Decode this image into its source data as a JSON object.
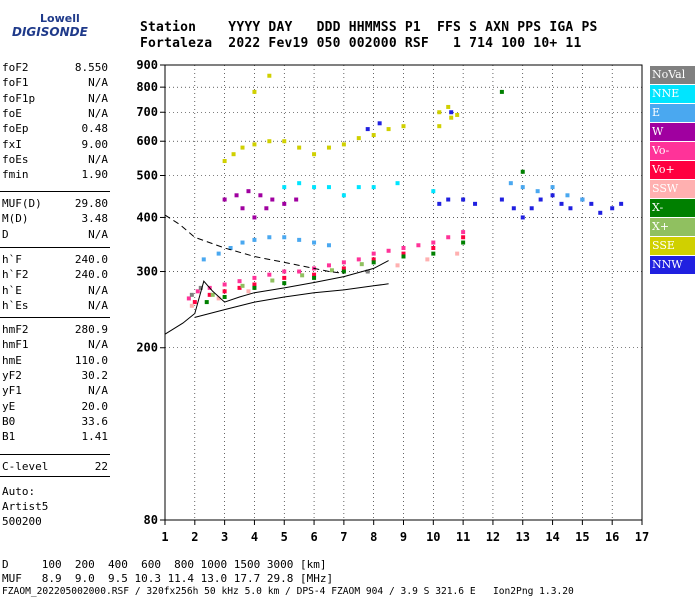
{
  "logo": {
    "line1": "Lowell",
    "line2": "DIGISONDE"
  },
  "header": {
    "line1": "Station    YYYY DAY   DDD HHMMSS P1  FFS S AXN PPS IGA PS",
    "line2": "Fortaleza  2022 Fev19 050 002000 RSF   1 714 100 10+ 11"
  },
  "params_group1": [
    {
      "name": "foF2",
      "value": "8.550"
    },
    {
      "name": "foF1",
      "value": "N/A"
    },
    {
      "name": "foF1p",
      "value": "N/A"
    },
    {
      "name": "foE",
      "value": "N/A"
    },
    {
      "name": "foEp",
      "value": "0.48"
    },
    {
      "name": "fxI",
      "value": "9.00"
    },
    {
      "name": "foEs",
      "value": "N/A"
    },
    {
      "name": "fmin",
      "value": "1.90"
    }
  ],
  "params_group2": [
    {
      "name": "MUF(D)",
      "value": "29.80"
    },
    {
      "name": "M(D)",
      "value": "3.48"
    },
    {
      "name": "D",
      "value": "N/A"
    }
  ],
  "params_group3": [
    {
      "name": "h`F",
      "value": "240.0"
    },
    {
      "name": "h`F2",
      "value": "240.0"
    },
    {
      "name": "h`E",
      "value": "N/A"
    },
    {
      "name": "h`Es",
      "value": "N/A"
    }
  ],
  "params_group4": [
    {
      "name": "hmF2",
      "value": "280.9"
    },
    {
      "name": "hmF1",
      "value": "N/A"
    },
    {
      "name": "hmE",
      "value": "110.0"
    },
    {
      "name": "yF2",
      "value": "30.2"
    },
    {
      "name": "yF1",
      "value": "N/A"
    },
    {
      "name": "yE",
      "value": "20.0"
    },
    {
      "name": "B0",
      "value": "33.6"
    },
    {
      "name": "B1",
      "value": "1.41"
    }
  ],
  "params_group5": [
    {
      "name": "C-level",
      "value": "22"
    }
  ],
  "auto": {
    "line1": "Auto:",
    "line2": "Artist5",
    "line3": "500200"
  },
  "legend": [
    {
      "label": "NoVal",
      "color": "#808080"
    },
    {
      "label": "NNE",
      "color": "#00e5ff"
    },
    {
      "label": "E",
      "color": "#4aa8f0"
    },
    {
      "label": "W",
      "color": "#a000a0"
    },
    {
      "label": "Vo-",
      "color": "#ff3399"
    },
    {
      "label": "Vo+",
      "color": "#ff0040"
    },
    {
      "label": "SSW",
      "color": "#ffb0b0"
    },
    {
      "label": "X-",
      "color": "#008000"
    },
    {
      "label": "X+",
      "color": "#90c060"
    },
    {
      "label": "SSE",
      "color": "#d0d000"
    },
    {
      "label": "NNW",
      "color": "#2020e0"
    }
  ],
  "bottom": {
    "line1": "D     100  200  400  600  800 1000 1500 3000 [km]",
    "line2": "MUF   8.9  9.0  9.5 10.3 11.4 13.0 17.7 29.8 [MHz]",
    "line3": "FZAOM_20220500200​0.RSF / 320fx256h 50 kHz 5.0 km / DPS-4 FZAOM 904 / 3.9 S 321.6 E   Ion2Png 1.3.20"
  },
  "chart_data": {
    "type": "scatter",
    "title": "",
    "xlabel": "",
    "ylabel": "",
    "xlim": [
      1,
      17
    ],
    "ylim": [
      80,
      900
    ],
    "x_ticks": [
      1,
      2,
      3,
      4,
      5,
      6,
      7,
      8,
      9,
      10,
      11,
      12,
      13,
      14,
      15,
      16,
      17
    ],
    "y_ticks": [
      80,
      200,
      300,
      400,
      500,
      600,
      700,
      800,
      900
    ],
    "y_scale": "log",
    "grid": true,
    "series": [
      {
        "name": "SSE",
        "color": "#d0d000",
        "points": [
          [
            3.0,
            540
          ],
          [
            3.3,
            560
          ],
          [
            3.6,
            580
          ],
          [
            4.0,
            590
          ],
          [
            4.5,
            600
          ],
          [
            5.0,
            600
          ],
          [
            5.5,
            580
          ],
          [
            6.0,
            560
          ],
          [
            6.5,
            580
          ],
          [
            7.0,
            590
          ],
          [
            7.5,
            610
          ],
          [
            8.0,
            620
          ],
          [
            8.5,
            640
          ],
          [
            9.0,
            650
          ],
          [
            10.2,
            650
          ],
          [
            10.6,
            680
          ],
          [
            10.8,
            690
          ],
          [
            10.2,
            700
          ],
          [
            10.5,
            720
          ],
          [
            4.0,
            780
          ],
          [
            4.5,
            850
          ]
        ]
      },
      {
        "name": "NNW",
        "color": "#2020e0",
        "points": [
          [
            10.2,
            430
          ],
          [
            10.5,
            440
          ],
          [
            11.0,
            440
          ],
          [
            11.4,
            430
          ],
          [
            12.3,
            440
          ],
          [
            12.7,
            420
          ],
          [
            13.0,
            400
          ],
          [
            13.3,
            420
          ],
          [
            13.6,
            440
          ],
          [
            14.0,
            450
          ],
          [
            14.3,
            430
          ],
          [
            14.6,
            420
          ],
          [
            15.0,
            440
          ],
          [
            15.3,
            430
          ],
          [
            15.6,
            410
          ],
          [
            16.0,
            420
          ],
          [
            16.3,
            430
          ],
          [
            7.8,
            640
          ],
          [
            8.2,
            660
          ],
          [
            10.6,
            700
          ]
        ]
      },
      {
        "name": "E",
        "color": "#4aa8f0",
        "points": [
          [
            2.3,
            320
          ],
          [
            2.8,
            330
          ],
          [
            3.2,
            340
          ],
          [
            3.6,
            350
          ],
          [
            4.0,
            355
          ],
          [
            4.5,
            360
          ],
          [
            5.0,
            360
          ],
          [
            5.5,
            355
          ],
          [
            6.0,
            350
          ],
          [
            6.5,
            345
          ],
          [
            13.0,
            470
          ],
          [
            13.5,
            460
          ],
          [
            14.0,
            470
          ],
          [
            14.5,
            450
          ],
          [
            15.0,
            440
          ],
          [
            12.6,
            480
          ]
        ]
      },
      {
        "name": "NNE",
        "color": "#00e5ff",
        "points": [
          [
            5.0,
            470
          ],
          [
            5.5,
            480
          ],
          [
            6.0,
            470
          ],
          [
            6.5,
            470
          ],
          [
            7.0,
            450
          ],
          [
            7.5,
            470
          ],
          [
            8.0,
            470
          ],
          [
            8.8,
            480
          ],
          [
            10.0,
            460
          ]
        ]
      },
      {
        "name": "W",
        "color": "#a000a0",
        "points": [
          [
            3.0,
            440
          ],
          [
            3.4,
            450
          ],
          [
            3.8,
            460
          ],
          [
            4.2,
            450
          ],
          [
            4.6,
            440
          ],
          [
            5.0,
            430
          ],
          [
            5.4,
            440
          ],
          [
            4.0,
            400
          ],
          [
            4.4,
            420
          ],
          [
            3.6,
            420
          ]
        ]
      },
      {
        "name": "Vo-",
        "color": "#ff3399",
        "points": [
          [
            1.8,
            260
          ],
          [
            2.1,
            270
          ],
          [
            2.5,
            275
          ],
          [
            3.0,
            280
          ],
          [
            3.5,
            285
          ],
          [
            4.0,
            290
          ],
          [
            4.5,
            295
          ],
          [
            5.0,
            300
          ],
          [
            5.5,
            300
          ],
          [
            6.0,
            305
          ],
          [
            6.5,
            310
          ],
          [
            7.0,
            315
          ],
          [
            7.5,
            320
          ],
          [
            8.0,
            330
          ],
          [
            8.5,
            335
          ],
          [
            9.0,
            340
          ],
          [
            9.5,
            345
          ],
          [
            10.0,
            350
          ],
          [
            10.5,
            360
          ],
          [
            11.0,
            370
          ]
        ]
      },
      {
        "name": "Vo+",
        "color": "#ff0040",
        "points": [
          [
            2.0,
            255
          ],
          [
            2.5,
            265
          ],
          [
            3.0,
            270
          ],
          [
            3.5,
            275
          ],
          [
            4.0,
            280
          ],
          [
            5.0,
            290
          ],
          [
            6.0,
            295
          ],
          [
            7.0,
            305
          ],
          [
            8.0,
            320
          ],
          [
            9.0,
            330
          ],
          [
            10.0,
            340
          ],
          [
            11.0,
            360
          ]
        ]
      },
      {
        "name": "X-",
        "color": "#008000",
        "points": [
          [
            2.4,
            255
          ],
          [
            3.0,
            262
          ],
          [
            4.0,
            275
          ],
          [
            5.0,
            282
          ],
          [
            6.0,
            290
          ],
          [
            7.0,
            300
          ],
          [
            8.0,
            315
          ],
          [
            9.0,
            325
          ],
          [
            10.0,
            330
          ],
          [
            11.0,
            350
          ],
          [
            13.0,
            510
          ],
          [
            12.3,
            780
          ]
        ]
      },
      {
        "name": "X+",
        "color": "#90c060",
        "points": [
          [
            2.6,
            265
          ],
          [
            3.6,
            278
          ],
          [
            4.6,
            286
          ],
          [
            5.6,
            294
          ],
          [
            6.6,
            302
          ],
          [
            7.6,
            312
          ]
        ]
      },
      {
        "name": "SSW",
        "color": "#ffb0b0",
        "points": [
          [
            1.9,
            250
          ],
          [
            2.8,
            260
          ],
          [
            3.8,
            270
          ],
          [
            8.8,
            310
          ],
          [
            9.8,
            320
          ],
          [
            10.8,
            330
          ]
        ]
      },
      {
        "name": "NoVal",
        "color": "#808080",
        "points": [
          [
            1.9,
            265
          ],
          [
            2.2,
            275
          ],
          [
            7.8,
            300
          ]
        ]
      }
    ],
    "profile_curve": [
      [
        2.0,
        235
      ],
      [
        2.5,
        240
      ],
      [
        3.0,
        245
      ],
      [
        4.0,
        255
      ],
      [
        5.0,
        262
      ],
      [
        6.0,
        268
      ],
      [
        7.0,
        272
      ],
      [
        8.0,
        278
      ],
      [
        8.5,
        281
      ]
    ],
    "dashed_curve": [
      [
        1.0,
        405
      ],
      [
        1.5,
        385
      ],
      [
        2.0,
        360
      ],
      [
        3.0,
        340
      ],
      [
        4.0,
        325
      ],
      [
        5.0,
        315
      ],
      [
        6.0,
        305
      ],
      [
        6.5,
        300
      ],
      [
        7.0,
        297
      ]
    ],
    "trace_curve": [
      [
        1.0,
        215
      ],
      [
        1.6,
        228
      ],
      [
        2.0,
        240
      ],
      [
        2.3,
        285
      ],
      [
        2.6,
        270
      ],
      [
        3.0,
        255
      ],
      [
        3.5,
        262
      ],
      [
        4.0,
        268
      ],
      [
        5.0,
        275
      ],
      [
        6.0,
        283
      ],
      [
        7.0,
        292
      ],
      [
        8.0,
        305
      ],
      [
        8.5,
        318
      ]
    ]
  }
}
